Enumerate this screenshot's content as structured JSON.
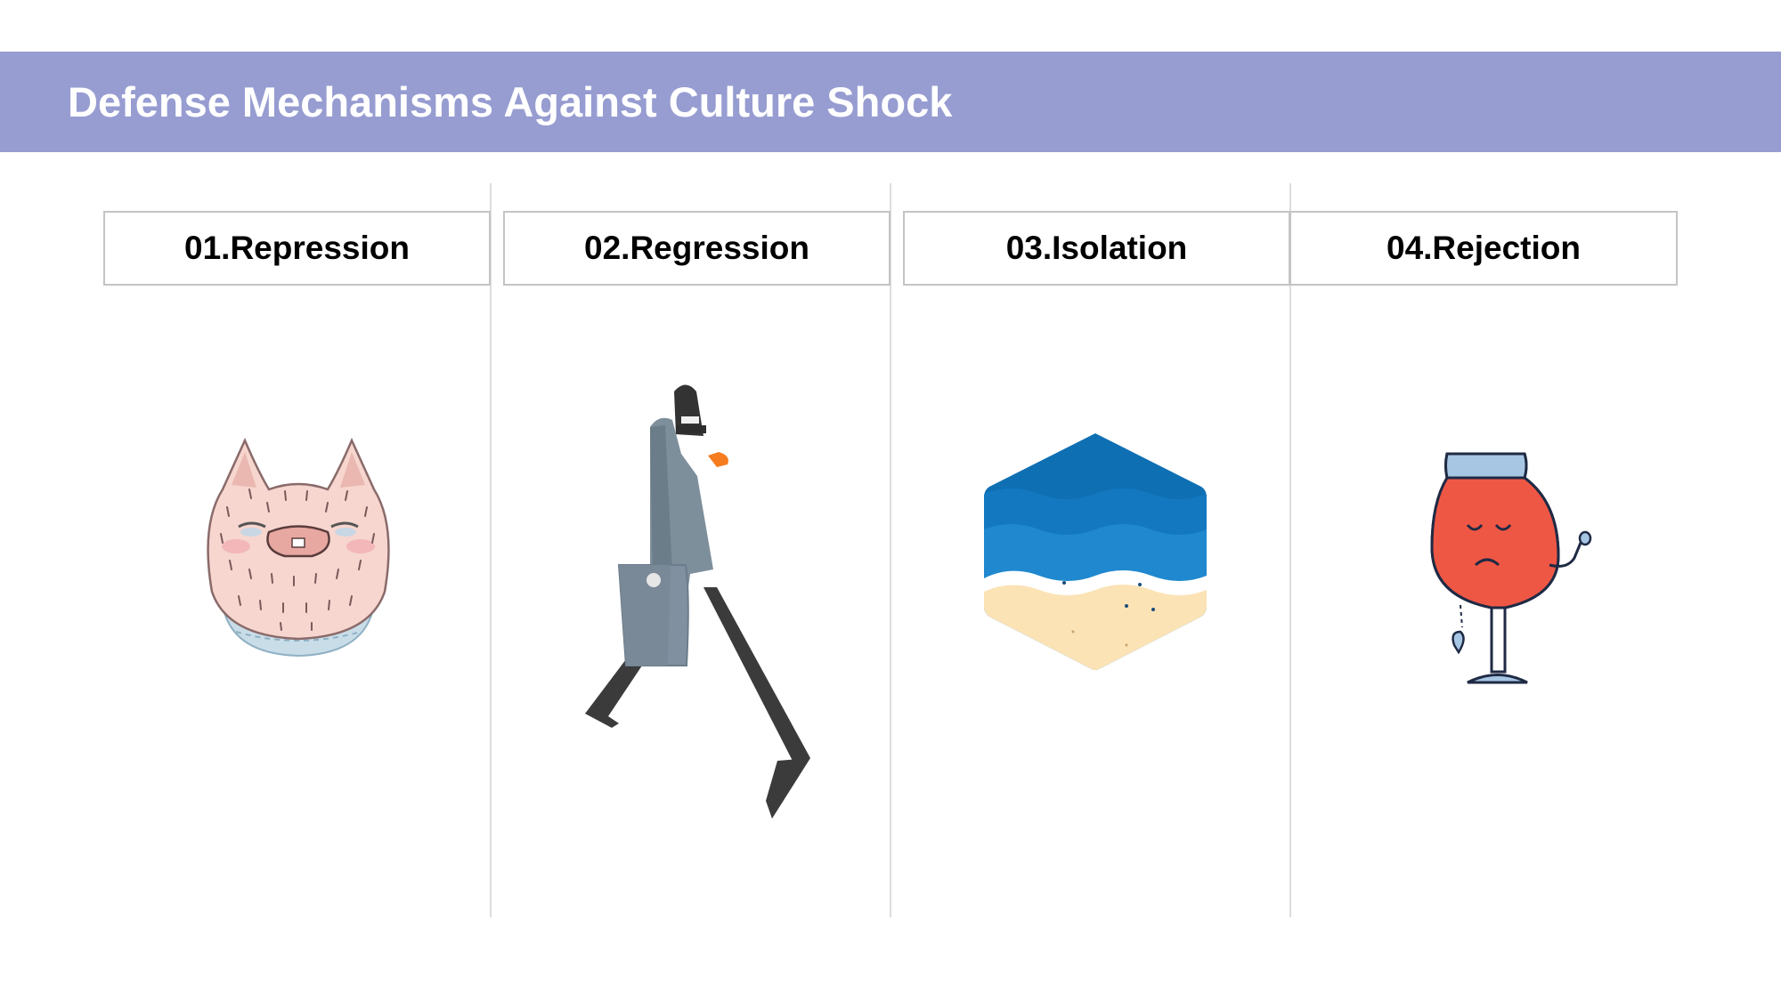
{
  "slide": {
    "title": "Defense Mechanisms Against Culture Shock",
    "accent_color": "#979dd1",
    "items": [
      {
        "label": "01.Repression",
        "icon": "pig-face-icon"
      },
      {
        "label": "02.Regression",
        "icon": "walking-man-briefcase-icon"
      },
      {
        "label": "03.Isolation",
        "icon": "ocean-beach-hexagon-icon"
      },
      {
        "label": "04.Rejection",
        "icon": "sad-wine-glass-icon"
      }
    ]
  }
}
